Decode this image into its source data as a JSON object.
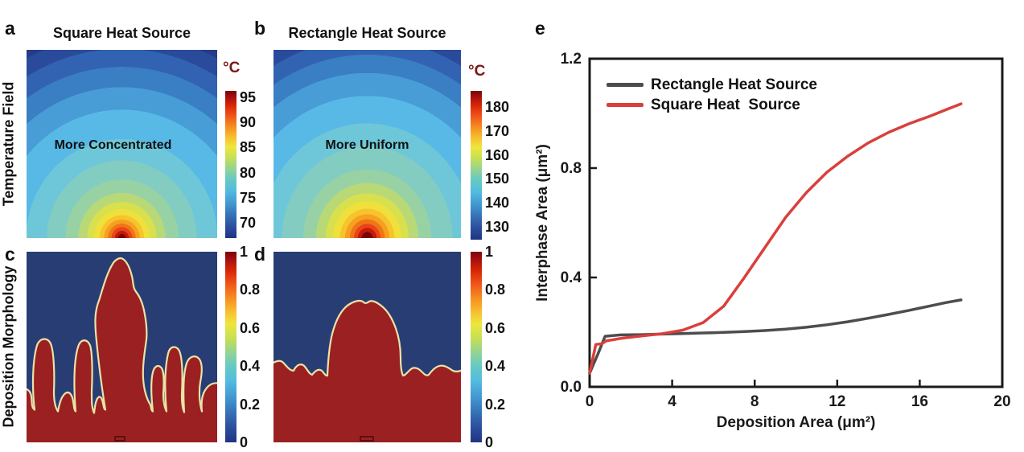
{
  "figure": {
    "row_labels": {
      "temperature": "Temperature Field",
      "morphology": "Deposition Morphology"
    }
  },
  "panels": {
    "a": {
      "letter": "a",
      "title": "Square Heat Source",
      "annotation": "More Concentrated",
      "colorbar": {
        "unit": "°C",
        "max": 96.2,
        "min": 67,
        "ticks": [
          "95",
          "90",
          "85",
          "80",
          "75",
          "70"
        ]
      }
    },
    "b": {
      "letter": "b",
      "title": "Rectangle Heat Source",
      "annotation": "More Uniform",
      "colorbar": {
        "unit": "°C",
        "max": 186.7,
        "min": 124.6,
        "ticks": [
          "180",
          "170",
          "160",
          "150",
          "140",
          "130"
        ]
      }
    },
    "c": {
      "letter": "c",
      "colorbar": {
        "max": 1,
        "min": 0,
        "ticks": [
          "1",
          "0.8",
          "0.6",
          "0.4",
          "0.2",
          "0"
        ]
      }
    },
    "d": {
      "letter": "d",
      "colorbar": {
        "max": 1,
        "min": 0,
        "ticks": [
          "1",
          "0.8",
          "0.6",
          "0.4",
          "0.2",
          "0"
        ]
      }
    },
    "e": {
      "letter": "e"
    }
  },
  "colors": {
    "series_gray": "#4d4d4d",
    "series_red": "#d9403c",
    "deposit_red": "#9b2022",
    "field_navy": "#293d75",
    "outline_yellow": "#e9e3a6",
    "unit_maroon": "#7a1616"
  },
  "chart_data": [
    {
      "type": "line",
      "title": "",
      "xlabel": "Deposition Area (μm²)",
      "ylabel": "Interphase Area (μm²)",
      "xlim": [
        0,
        20
      ],
      "ylim": [
        0,
        1.2
      ],
      "xticks": [
        "0",
        "4",
        "8",
        "12",
        "16",
        "20"
      ],
      "yticks": [
        "0.0",
        "0.4",
        "0.8",
        "1.2"
      ],
      "grid": false,
      "legend_position": "top-left",
      "series": [
        {
          "name": "Rectangle Heat Source",
          "color": "#4d4d4d",
          "x": [
            0,
            0.4,
            0.75,
            1.5,
            2.5,
            3.5,
            4.5,
            5.5,
            6.5,
            7.5,
            8.5,
            9.5,
            10.5,
            11.5,
            12.5,
            13.5,
            14.5,
            15.5,
            16.5,
            17.25,
            18
          ],
          "y": [
            0.05,
            0.12,
            0.185,
            0.19,
            0.191,
            0.193,
            0.195,
            0.197,
            0.199,
            0.202,
            0.206,
            0.211,
            0.218,
            0.227,
            0.238,
            0.251,
            0.265,
            0.28,
            0.296,
            0.308,
            0.318
          ]
        },
        {
          "name": "Square Heat  Source",
          "color": "#d9403c",
          "x": [
            0,
            0.3,
            0.6,
            0.8,
            1.5,
            2.5,
            3.5,
            4.5,
            5.5,
            6.5,
            7.5,
            8.5,
            9.5,
            10.5,
            11.5,
            12.5,
            13.5,
            14.5,
            15.5,
            16.5,
            17.25,
            18
          ],
          "y": [
            0.05,
            0.155,
            0.158,
            0.168,
            0.177,
            0.186,
            0.194,
            0.207,
            0.235,
            0.295,
            0.4,
            0.51,
            0.62,
            0.71,
            0.785,
            0.843,
            0.892,
            0.931,
            0.963,
            0.99,
            1.013,
            1.035
          ]
        }
      ]
    },
    {
      "type": "heatmap",
      "panel": "a",
      "title": "Square Heat Source",
      "unit": "°C",
      "scale_ticks": [
        95,
        90,
        85,
        80,
        75,
        70
      ],
      "annotation": "More Concentrated"
    },
    {
      "type": "heatmap",
      "panel": "b",
      "title": "Rectangle Heat Source",
      "unit": "°C",
      "scale_ticks": [
        180,
        170,
        160,
        150,
        140,
        130
      ],
      "annotation": "More Uniform"
    },
    {
      "type": "heatmap",
      "panel": "c",
      "title": "",
      "scale_ticks": [
        1,
        0.8,
        0.6,
        0.4,
        0.2,
        0
      ],
      "annotation": ""
    },
    {
      "type": "heatmap",
      "panel": "d",
      "title": "",
      "scale_ticks": [
        1,
        0.8,
        0.6,
        0.4,
        0.2,
        0
      ],
      "annotation": ""
    }
  ]
}
